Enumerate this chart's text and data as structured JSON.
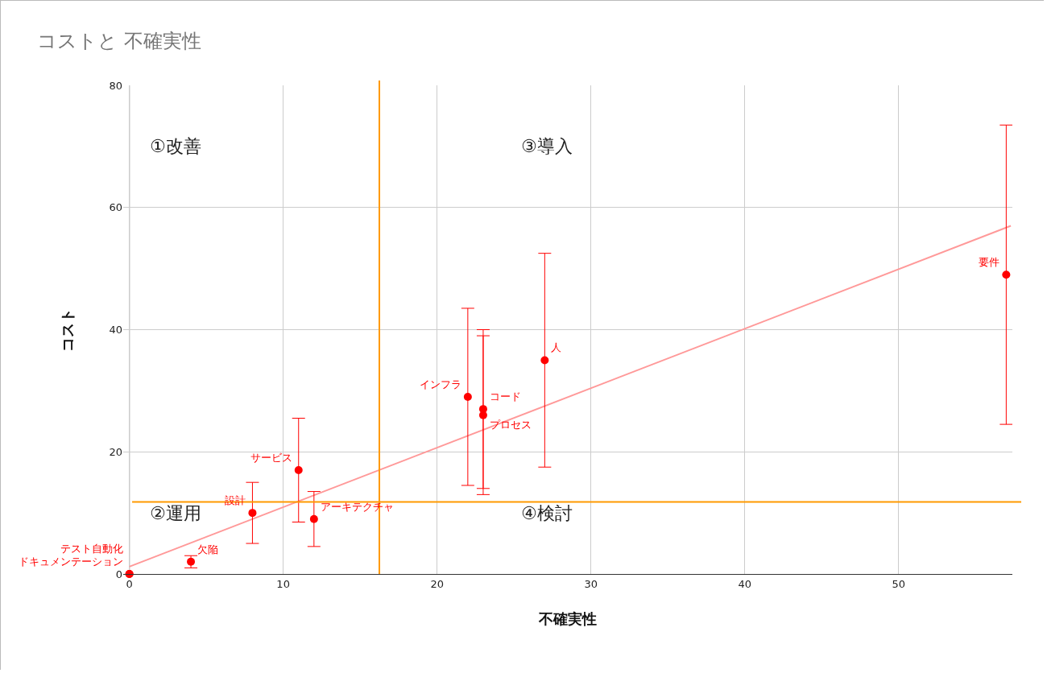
{
  "chart_data": {
    "type": "scatter",
    "title": "コストと 不確実性",
    "xlabel": "不確実性",
    "ylabel": "コスト",
    "xlim": [
      -0.4,
      57.4
    ],
    "xticks": [
      0,
      10,
      20,
      30,
      40,
      50
    ],
    "ylim": [
      0,
      80
    ],
    "yticks": [
      0,
      20,
      40,
      60,
      80
    ],
    "grid": true,
    "legend": false,
    "marker": "circle",
    "series": [
      {
        "name": "ドキュメンテーション",
        "color": "#ff0000",
        "x": [
          0
        ],
        "values": [
          0
        ]
      },
      {
        "name": "テスト自動化",
        "color": "#ff0000",
        "x": [
          0
        ],
        "values": [
          0
        ]
      },
      {
        "name": "欠陥",
        "color": "#ff0000",
        "x": [
          4
        ],
        "values": [
          2
        ],
        "errors": [
          1
        ]
      },
      {
        "name": "設計",
        "color": "#ff0000",
        "x": [
          8
        ],
        "values": [
          10
        ],
        "errors": [
          5
        ]
      },
      {
        "name": "サービス",
        "color": "#ff0000",
        "x": [
          11
        ],
        "values": [
          17
        ],
        "errors": [
          8.5
        ]
      },
      {
        "name": "アーキテクチャ",
        "color": "#ff0000",
        "x": [
          12
        ],
        "values": [
          9
        ],
        "errors": [
          4.5
        ]
      },
      {
        "name": "インフラ",
        "color": "#ff0000",
        "x": [
          22
        ],
        "values": [
          29
        ],
        "errors": [
          14.5
        ]
      },
      {
        "name": "コード",
        "color": "#ff0000",
        "x": [
          23
        ],
        "values": [
          27
        ],
        "errors": [
          13
        ]
      },
      {
        "name": "プロセス",
        "color": "#ff0000",
        "x": [
          23
        ],
        "values": [
          26
        ],
        "errors": [
          13
        ]
      },
      {
        "name": "人",
        "color": "#ff0000",
        "x": [
          27
        ],
        "values": [
          35
        ],
        "errors": [
          17.5
        ]
      },
      {
        "name": "要件",
        "color": "#ff0000",
        "x": [
          57
        ],
        "values": [
          49
        ],
        "errors": [
          24.5
        ]
      },
      {
        "type": "line",
        "marker": "none",
        "color": "#ff9999",
        "x": [
          0,
          57.3
        ],
        "values": [
          1.2,
          57
        ]
      }
    ],
    "ref_lines": [
      {
        "axis": "x",
        "value": 16.25,
        "color": "#ff9900"
      },
      {
        "axis": "y",
        "value": 11.8,
        "color": "#ff9900"
      }
    ],
    "annotations": [
      "①改善",
      "③導入",
      "②運用",
      "④検討"
    ]
  }
}
